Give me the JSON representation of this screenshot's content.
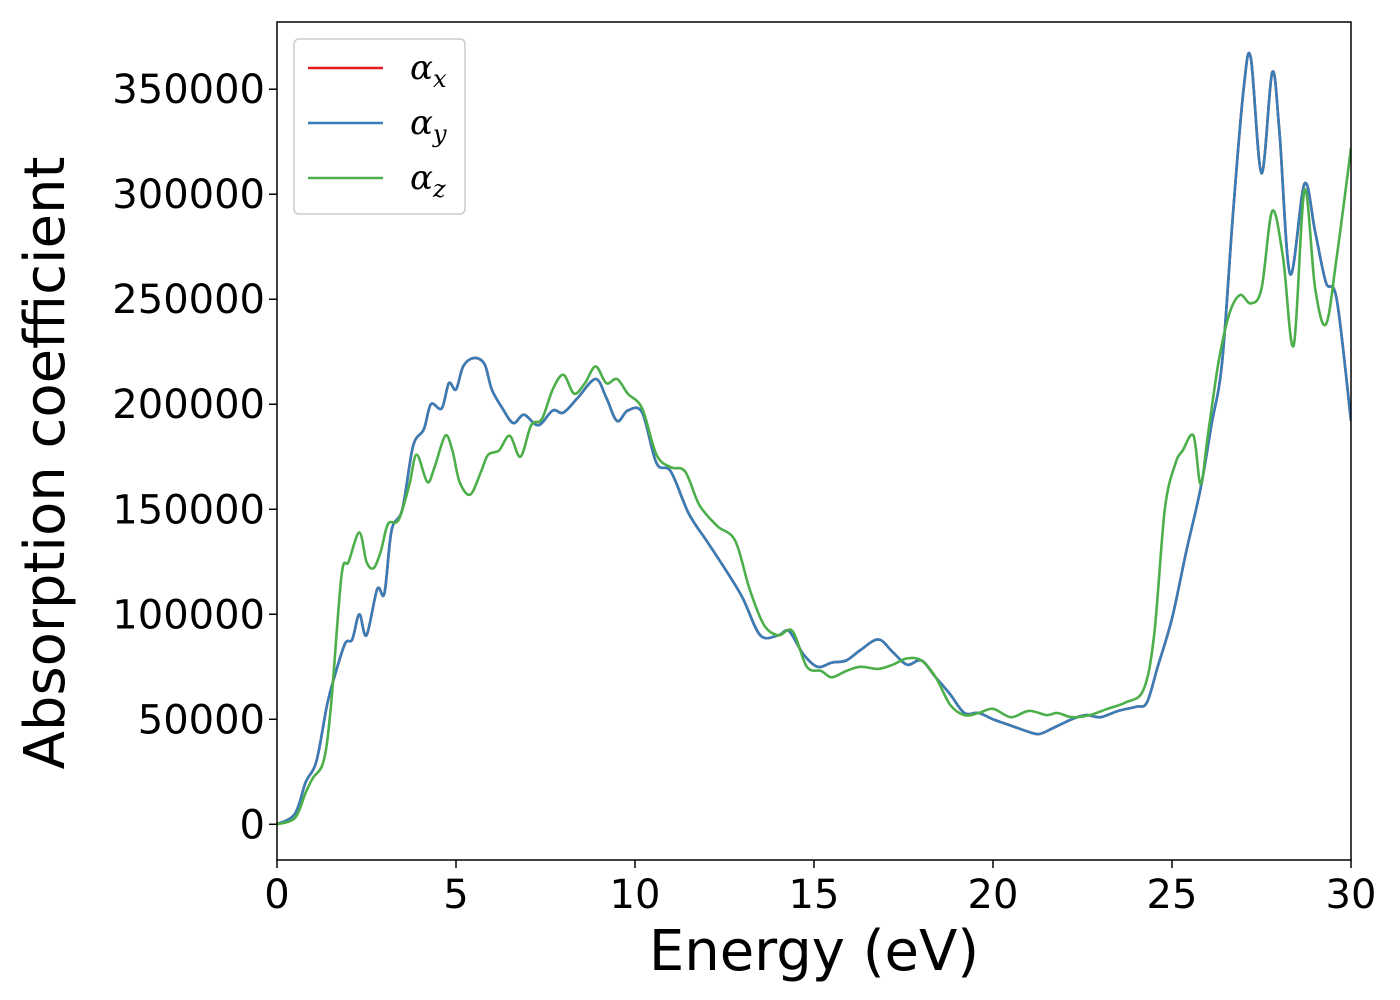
{
  "chart_data": {
    "type": "line",
    "title": "",
    "xlabel": "Energy (eV)",
    "ylabel": "Absorption coefficient",
    "xlim": [
      0,
      30
    ],
    "ylim": [
      -17000,
      382000
    ],
    "xticks": [
      0,
      5,
      10,
      15,
      20,
      25,
      30
    ],
    "xtick_labels": [
      "0",
      "5",
      "10",
      "15",
      "20",
      "25",
      "30"
    ],
    "yticks": [
      0,
      50000,
      100000,
      150000,
      200000,
      250000,
      300000,
      350000
    ],
    "ytick_labels": [
      "0",
      "50000",
      "100000",
      "150000",
      "200000",
      "250000",
      "300000",
      "350000"
    ],
    "grid": false,
    "legend_position": "top-left",
    "series": [
      {
        "name": "α",
        "sub": "x",
        "color": "#e41a1c",
        "x": [
          0,
          0.5,
          0.8,
          1.1,
          1.4,
          1.6,
          1.9,
          2.1,
          2.3,
          2.5,
          2.8,
          3.0,
          3.2,
          3.5,
          3.8,
          4.1,
          4.3,
          4.6,
          4.8,
          5.0,
          5.2,
          5.5,
          5.8,
          6.0,
          6.3,
          6.6,
          6.9,
          7.3,
          7.7,
          8.0,
          8.4,
          8.9,
          9.2,
          9.5,
          9.8,
          10.2,
          10.6,
          11.0,
          11.5,
          12.0,
          12.5,
          13.0,
          13.5,
          14.0,
          14.3,
          14.7,
          15.1,
          15.5,
          15.9,
          16.3,
          16.8,
          17.2,
          17.6,
          18.0,
          18.4,
          18.8,
          19.2,
          19.6,
          20.0,
          20.5,
          21.0,
          21.3,
          21.7,
          22.2,
          22.6,
          23.0,
          23.5,
          24.0,
          24.3,
          24.6,
          25.0,
          25.4,
          25.8,
          26.1,
          26.4,
          26.7,
          27.0,
          27.2,
          27.5,
          27.8,
          28.0,
          28.3,
          28.7,
          29.0,
          29.3,
          29.6,
          30.0
        ],
        "values": [
          0,
          5000,
          20000,
          30000,
          57000,
          70000,
          86000,
          88000,
          100000,
          90000,
          112000,
          110000,
          140000,
          150000,
          180000,
          188000,
          200000,
          198000,
          210000,
          207000,
          218000,
          222000,
          219000,
          207000,
          198000,
          191000,
          195000,
          190000,
          197000,
          196000,
          203000,
          212000,
          203000,
          192000,
          197000,
          196000,
          172000,
          168000,
          148000,
          135000,
          122000,
          108000,
          90000,
          90000,
          92000,
          81000,
          75000,
          77000,
          78000,
          83000,
          88000,
          82000,
          76000,
          78000,
          70000,
          62000,
          53000,
          53000,
          50000,
          47000,
          44000,
          43000,
          46000,
          50000,
          52000,
          51000,
          54000,
          56000,
          58000,
          75000,
          98000,
          130000,
          160000,
          190000,
          220000,
          290000,
          350000,
          365000,
          310000,
          358000,
          330000,
          262000,
          305000,
          282000,
          258000,
          250000,
          192000
        ]
      },
      {
        "name": "α",
        "sub": "y",
        "color": "#377eb8",
        "x": [
          0,
          0.5,
          0.8,
          1.1,
          1.4,
          1.6,
          1.9,
          2.1,
          2.3,
          2.5,
          2.8,
          3.0,
          3.2,
          3.5,
          3.8,
          4.1,
          4.3,
          4.6,
          4.8,
          5.0,
          5.2,
          5.5,
          5.8,
          6.0,
          6.3,
          6.6,
          6.9,
          7.3,
          7.7,
          8.0,
          8.4,
          8.9,
          9.2,
          9.5,
          9.8,
          10.2,
          10.6,
          11.0,
          11.5,
          12.0,
          12.5,
          13.0,
          13.5,
          14.0,
          14.3,
          14.7,
          15.1,
          15.5,
          15.9,
          16.3,
          16.8,
          17.2,
          17.6,
          18.0,
          18.4,
          18.8,
          19.2,
          19.6,
          20.0,
          20.5,
          21.0,
          21.3,
          21.7,
          22.2,
          22.6,
          23.0,
          23.5,
          24.0,
          24.3,
          24.6,
          25.0,
          25.4,
          25.8,
          26.1,
          26.4,
          26.7,
          27.0,
          27.2,
          27.5,
          27.8,
          28.0,
          28.3,
          28.7,
          29.0,
          29.3,
          29.6,
          30.0
        ],
        "values": [
          0,
          5000,
          20000,
          30000,
          57000,
          70000,
          86000,
          88000,
          100000,
          90000,
          112000,
          110000,
          140000,
          150000,
          180000,
          188000,
          200000,
          198000,
          210000,
          207000,
          218000,
          222000,
          219000,
          207000,
          198000,
          191000,
          195000,
          190000,
          197000,
          196000,
          203000,
          212000,
          203000,
          192000,
          197000,
          196000,
          172000,
          168000,
          148000,
          135000,
          122000,
          108000,
          90000,
          90000,
          92000,
          81000,
          75000,
          77000,
          78000,
          83000,
          88000,
          82000,
          76000,
          78000,
          70000,
          62000,
          53000,
          53000,
          50000,
          47000,
          44000,
          43000,
          46000,
          50000,
          52000,
          51000,
          54000,
          56000,
          58000,
          75000,
          98000,
          130000,
          160000,
          190000,
          220000,
          290000,
          350000,
          365000,
          310000,
          358000,
          330000,
          262000,
          305000,
          282000,
          258000,
          250000,
          192000
        ]
      },
      {
        "name": "α",
        "sub": "z",
        "color": "#4daf4a",
        "x": [
          0,
          0.5,
          0.8,
          1.0,
          1.3,
          1.5,
          1.8,
          2.0,
          2.3,
          2.5,
          2.7,
          2.9,
          3.1,
          3.4,
          3.7,
          3.9,
          4.2,
          4.4,
          4.7,
          4.9,
          5.1,
          5.4,
          5.7,
          5.9,
          6.2,
          6.5,
          6.8,
          7.1,
          7.4,
          7.7,
          8.0,
          8.3,
          8.6,
          8.9,
          9.2,
          9.5,
          9.8,
          10.2,
          10.6,
          11.0,
          11.4,
          11.8,
          12.3,
          12.8,
          13.2,
          13.6,
          14.0,
          14.4,
          14.8,
          15.2,
          15.5,
          15.9,
          16.3,
          16.8,
          17.2,
          17.6,
          18.0,
          18.4,
          18.8,
          19.2,
          19.6,
          20.0,
          20.5,
          21.0,
          21.5,
          21.8,
          22.2,
          22.7,
          23.2,
          23.7,
          24.2,
          24.5,
          24.8,
          25.1,
          25.3,
          25.6,
          25.8,
          26.0,
          26.3,
          26.6,
          26.9,
          27.2,
          27.5,
          27.8,
          28.1,
          28.4,
          28.7,
          29.0,
          29.3,
          29.6,
          30.0
        ],
        "values": [
          0,
          3000,
          15000,
          22000,
          30000,
          55000,
          118000,
          125000,
          139000,
          125000,
          122000,
          130000,
          143000,
          145000,
          162000,
          176000,
          163000,
          170000,
          185000,
          178000,
          163000,
          157000,
          168000,
          176000,
          178000,
          185000,
          175000,
          190000,
          193000,
          207000,
          214000,
          205000,
          210000,
          218000,
          210000,
          212000,
          205000,
          198000,
          176000,
          170000,
          168000,
          152000,
          142000,
          135000,
          112000,
          95000,
          90000,
          92000,
          75000,
          73000,
          70000,
          73000,
          75000,
          74000,
          76000,
          79000,
          78000,
          70000,
          57000,
          52000,
          53000,
          55000,
          51000,
          54000,
          52000,
          53000,
          51000,
          52000,
          55000,
          58000,
          64000,
          90000,
          150000,
          172000,
          178000,
          185000,
          162000,
          185000,
          220000,
          243000,
          252000,
          248000,
          255000,
          292000,
          270000,
          228000,
          302000,
          255000,
          238000,
          270000,
          322000
        ]
      }
    ]
  }
}
